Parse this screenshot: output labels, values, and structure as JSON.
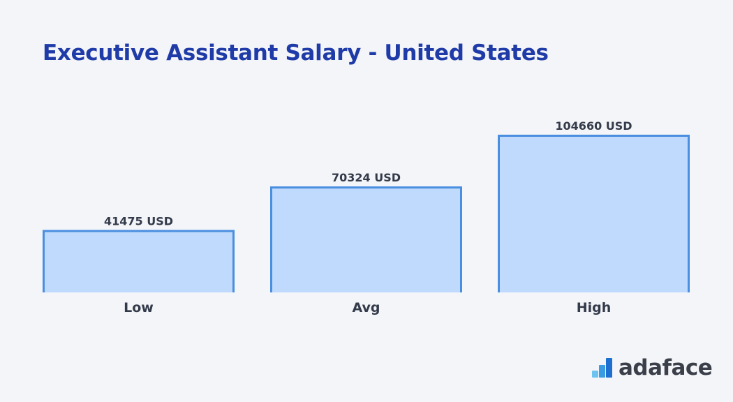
{
  "header": {
    "title": "Executive Assistant Salary - United States"
  },
  "chart_data": {
    "type": "bar",
    "title": "Executive Assistant Salary - United States",
    "categories": [
      "Low",
      "Avg",
      "High"
    ],
    "values": [
      41475,
      70324,
      104660
    ],
    "data_labels": [
      "41475 USD",
      "70324 USD",
      "104660 USD"
    ],
    "unit": "USD",
    "xlabel": "",
    "ylabel": "",
    "grid": false,
    "legend": "none",
    "bar_fill_color": "#bfdafc",
    "bar_stroke_color": "#4a8ee0"
  },
  "brand": {
    "logo_icon": "adaface-steps-icon",
    "name": "adaface"
  }
}
